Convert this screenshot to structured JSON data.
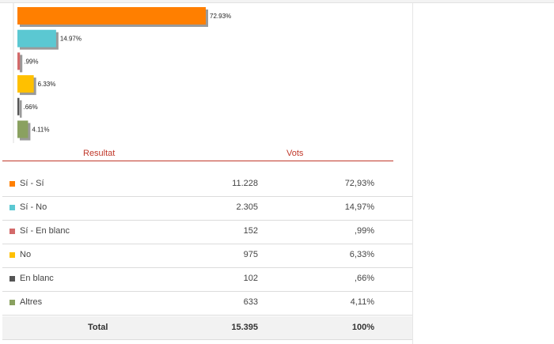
{
  "chart_data": {
    "type": "bar",
    "orientation": "horizontal",
    "categories": [
      "Sí - Sí",
      "Sí - No",
      "Sí - En blanc",
      "No",
      "En blanc",
      "Altres"
    ],
    "values": [
      72.93,
      14.97,
      0.99,
      6.33,
      0.66,
      4.11
    ],
    "value_labels": [
      "72.93%",
      "14.97%",
      ".99%",
      "6.33%",
      ".66%",
      "4.11%"
    ],
    "colors": [
      "#ff7f00",
      "#5bc8d2",
      "#d36a6a",
      "#ffc000",
      "#555555",
      "#8aa160"
    ],
    "xlim": [
      0,
      100
    ],
    "grid": false,
    "legend": "none"
  },
  "table": {
    "header": {
      "result": "Resultat",
      "votes": "Vots"
    },
    "rows": [
      {
        "name": "Sí - Sí",
        "votes": "11.228",
        "pct": "72,93%",
        "color": "#ff7f00"
      },
      {
        "name": "Sí - No",
        "votes": "2.305",
        "pct": "14,97%",
        "color": "#5bc8d2"
      },
      {
        "name": "Sí - En blanc",
        "votes": "152",
        "pct": ",99%",
        "color": "#d36a6a"
      },
      {
        "name": "No",
        "votes": "975",
        "pct": "6,33%",
        "color": "#ffc000"
      },
      {
        "name": "En blanc",
        "votes": "102",
        "pct": ",66%",
        "color": "#555555"
      },
      {
        "name": "Altres",
        "votes": "633",
        "pct": "4,11%",
        "color": "#8aa160"
      }
    ],
    "total": {
      "name": "Total",
      "votes": "15.395",
      "pct": "100%"
    }
  }
}
